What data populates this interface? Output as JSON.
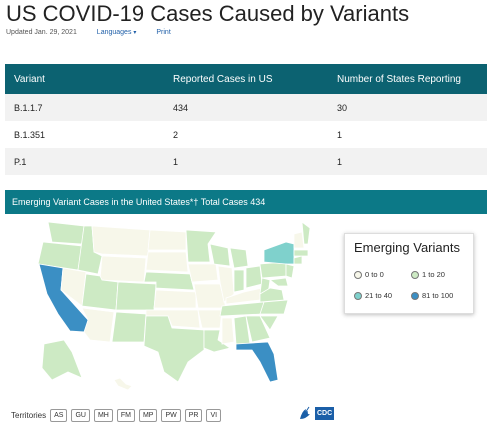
{
  "page": {
    "title": "US COVID-19 Cases Caused by Variants",
    "updated": "Updated Jan. 29, 2021",
    "languages_link": "Languages",
    "languages_caret": "▾",
    "print_link": "Print"
  },
  "table": {
    "headers": [
      "Variant",
      "Reported Cases in US",
      "Number of States Reporting"
    ],
    "rows": [
      [
        "B.1.1.7",
        "434",
        "30"
      ],
      [
        "B.1.351",
        "2",
        "1"
      ],
      [
        "P.1",
        "1",
        "1"
      ]
    ]
  },
  "map_section": {
    "title": "Emerging Variant Cases in the United States*† Total Cases 434"
  },
  "legend": {
    "title": "Emerging Variants",
    "items": [
      {
        "label": "0 to 0",
        "color": "#f7f7ea"
      },
      {
        "label": "1 to 20",
        "color": "#cdeac4"
      },
      {
        "label": "21 to 40",
        "color": "#7fd1cc"
      },
      {
        "label": "81 to 100",
        "color": "#3b8fc4"
      }
    ]
  },
  "territories": {
    "label": "Territories",
    "items": [
      "AS",
      "GU",
      "MH",
      "FM",
      "MP",
      "PW",
      "PR",
      "VI"
    ]
  },
  "footer": {
    "cdc_logo": "CDC"
  },
  "colors": {
    "header_teal": "#0c6271",
    "map_bar_teal": "#0c7987",
    "link_blue": "#1f5fa8"
  }
}
